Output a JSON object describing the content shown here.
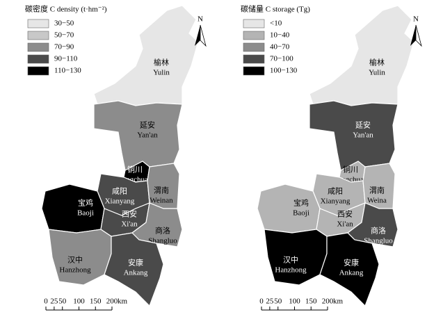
{
  "maps": [
    {
      "legend": {
        "title": "碳密度 C density (t·hm⁻²)",
        "items": [
          {
            "label": "30−50",
            "color": "#e6e6e6"
          },
          {
            "label": "50−70",
            "color": "#c8c8c8"
          },
          {
            "label": "70−90",
            "color": "#8c8c8c"
          },
          {
            "label": "90−110",
            "color": "#4a4a4a"
          },
          {
            "label": "110−130",
            "color": "#000000"
          }
        ]
      },
      "regions": [
        {
          "name_cn": "榆林",
          "name_en": "Yulin",
          "color": "#e6e6e6"
        },
        {
          "name_cn": "延安",
          "name_en": "Yan'an",
          "color": "#8c8c8c"
        },
        {
          "name_cn": "铜川",
          "name_en": "Tongchuan",
          "color": "#000000"
        },
        {
          "name_cn": "咸阳",
          "name_en": "Xianyang",
          "color": "#4a4a4a"
        },
        {
          "name_cn": "渭南",
          "name_en": "Weinan",
          "color": "#8c8c8c"
        },
        {
          "name_cn": "宝鸡",
          "name_en": "Baoji",
          "color": "#000000"
        },
        {
          "name_cn": "西安",
          "name_en": "Xi'an",
          "color": "#4a4a4a"
        },
        {
          "name_cn": "商洛",
          "name_en": "Shangluo",
          "color": "#8c8c8c"
        },
        {
          "name_cn": "汉中",
          "name_en": "Hanzhong",
          "color": "#8c8c8c"
        },
        {
          "name_cn": "安康",
          "name_en": "Ankang",
          "color": "#4a4a4a"
        }
      ],
      "north": "N",
      "scale": {
        "ticks": [
          0,
          25,
          50,
          100,
          150,
          200
        ],
        "unit": "km"
      }
    },
    {
      "legend": {
        "title": "碳储量 C storage (Tg)",
        "items": [
          {
            "label": "<10",
            "color": "#e6e6e6"
          },
          {
            "label": "10−40",
            "color": "#b4b4b4"
          },
          {
            "label": "40−70",
            "color": "#8c8c8c"
          },
          {
            "label": "70−100",
            "color": "#4a4a4a"
          },
          {
            "label": "100−130",
            "color": "#000000"
          }
        ]
      },
      "regions": [
        {
          "name_cn": "榆林",
          "name_en": "Yulin",
          "color": "#e6e6e6"
        },
        {
          "name_cn": "延安",
          "name_en": "Yan'an",
          "color": "#4a4a4a"
        },
        {
          "name_cn": "铜川",
          "name_en": "Tongchuan",
          "color": "#b4b4b4"
        },
        {
          "name_cn": "咸阳",
          "name_en": "Xianyang",
          "color": "#b4b4b4"
        },
        {
          "name_cn": "渭南",
          "name_en": "Weina",
          "color": "#b4b4b4"
        },
        {
          "name_cn": "宝鸡",
          "name_en": "Baoji",
          "color": "#b4b4b4"
        },
        {
          "name_cn": "西安",
          "name_en": "Xi'an",
          "color": "#b4b4b4"
        },
        {
          "name_cn": "商洛",
          "name_en": "Shangluo",
          "color": "#4a4a4a"
        },
        {
          "name_cn": "汉中",
          "name_en": "Hanzhong",
          "color": "#000000"
        },
        {
          "name_cn": "安康",
          "name_en": "Ankang",
          "color": "#000000"
        }
      ],
      "north": "N",
      "scale": {
        "ticks": [
          0,
          25,
          50,
          100,
          150,
          200
        ],
        "unit": "km"
      }
    }
  ]
}
